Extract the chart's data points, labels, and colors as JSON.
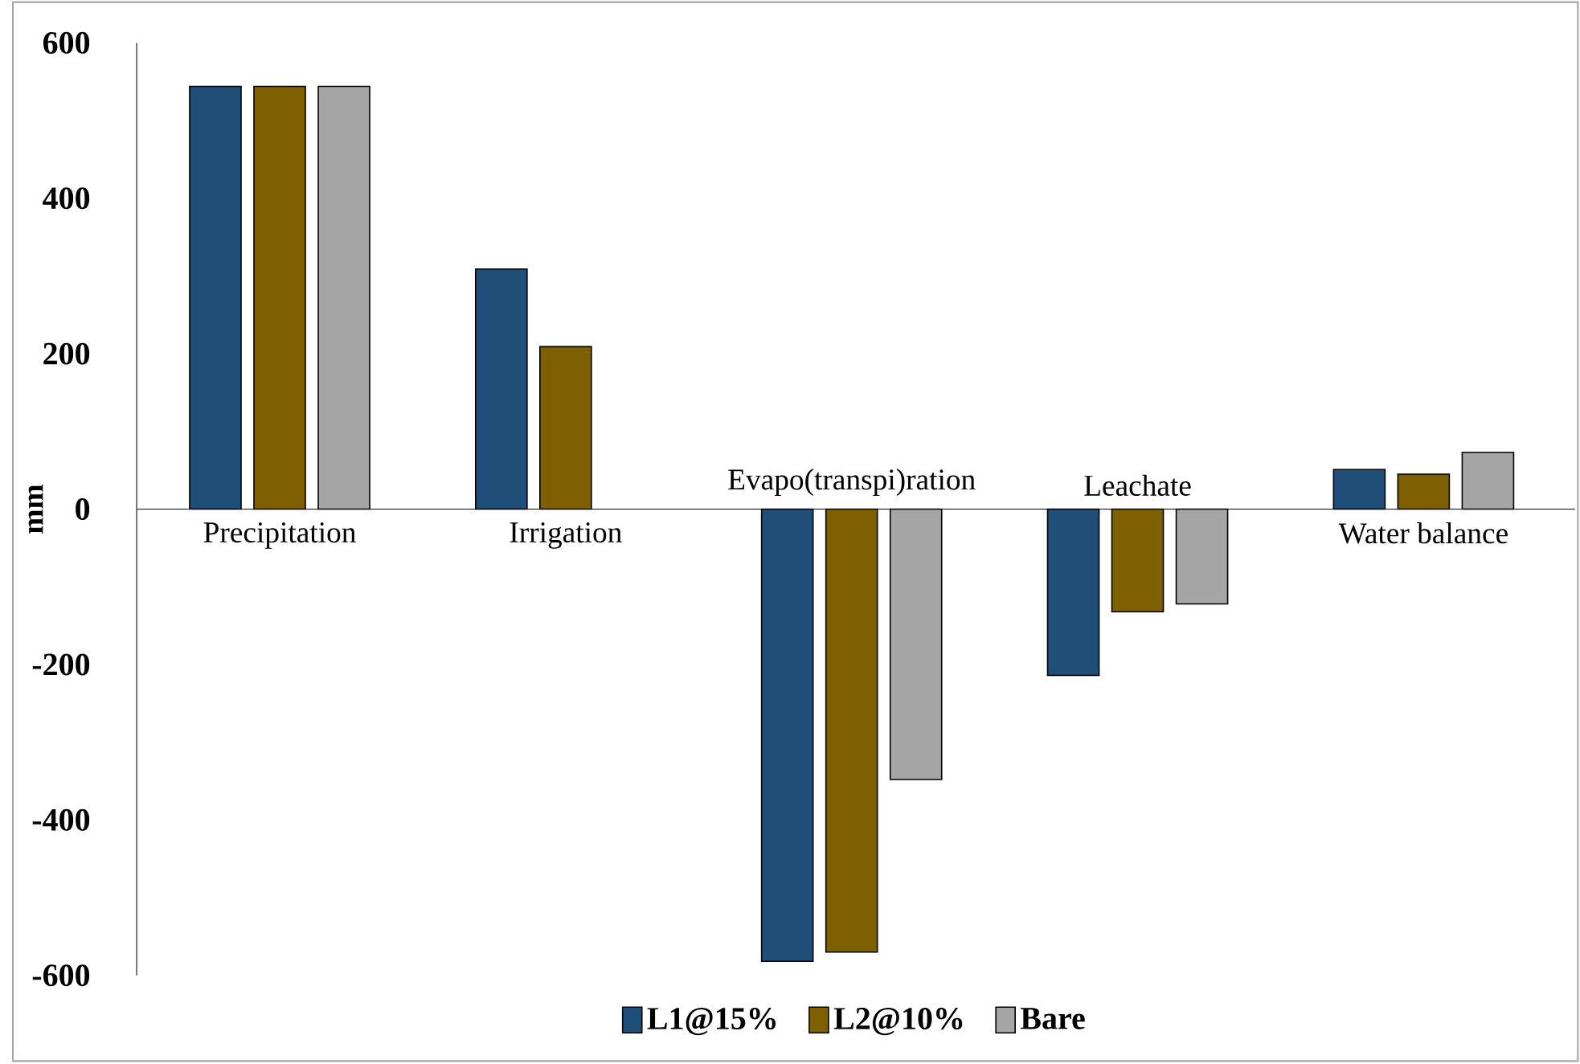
{
  "chart_data": {
    "type": "bar",
    "ylabel": "mm",
    "categories": [
      "Precipitation",
      "Irrigation",
      "Evapo(transpi)ration",
      "Leachate",
      "Water balance"
    ],
    "series": [
      {
        "name": "L1@15%",
        "color": "#1f4e79",
        "values": [
          544,
          309,
          -582,
          -214,
          51
        ]
      },
      {
        "name": "L2@10%",
        "color": "#7f6000",
        "values": [
          544,
          209,
          -570,
          -132,
          45
        ]
      },
      {
        "name": "Bare",
        "color": "#a5a5a5",
        "values": [
          544,
          null,
          -348,
          -122,
          73
        ]
      }
    ],
    "ylim": [
      -600,
      600
    ],
    "yticks": [
      -600,
      -400,
      -200,
      0,
      200,
      400,
      600
    ],
    "grid": false,
    "legend": "bottom"
  }
}
